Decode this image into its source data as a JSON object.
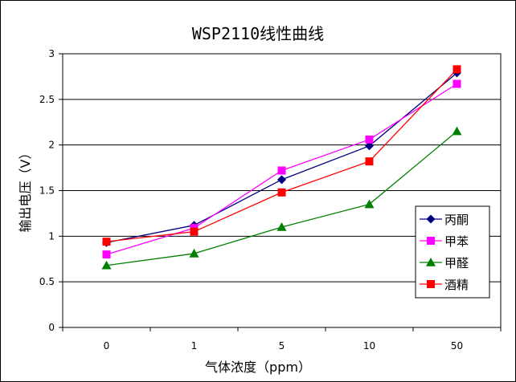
{
  "chart_data": {
    "type": "line",
    "title": "WSP2110线性曲线",
    "xlabel": "气体浓度（ppm）",
    "ylabel": "输出电压（V）",
    "categories": [
      "0",
      "1",
      "5",
      "10",
      "50"
    ],
    "ylim": [
      0,
      3
    ],
    "yticks": [
      "0",
      "0.5",
      "1",
      "1.5",
      "2",
      "2.5",
      "3"
    ],
    "grid": "horizontal",
    "legend_position": "right",
    "series": [
      {
        "name": "丙酮",
        "color": "#000080",
        "marker": "diamond",
        "values": [
          0.93,
          1.12,
          1.62,
          1.99,
          2.79
        ]
      },
      {
        "name": "甲苯",
        "color": "#ff00ff",
        "marker": "square",
        "values": [
          0.8,
          1.09,
          1.72,
          2.06,
          2.67
        ]
      },
      {
        "name": "甲醛",
        "color": "#008000",
        "marker": "triangle",
        "values": [
          0.68,
          0.81,
          1.1,
          1.35,
          2.15
        ]
      },
      {
        "name": "酒精",
        "color": "#ff0000",
        "marker": "square",
        "values": [
          0.94,
          1.05,
          1.48,
          1.82,
          2.83
        ]
      }
    ]
  }
}
